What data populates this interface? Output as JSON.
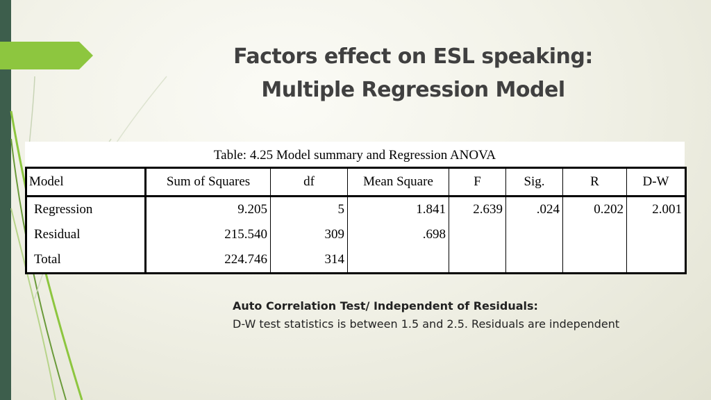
{
  "title": {
    "line1": "Factors effect on ESL speaking:",
    "line2": "Multiple Regression Model"
  },
  "table": {
    "caption": "Table: 4.25 Model summary and Regression ANOVA",
    "headers": [
      "Model",
      "Sum of Squares",
      "df",
      "Mean Square",
      "F",
      "Sig.",
      "R",
      "D-W"
    ],
    "rows": [
      [
        "Regression",
        "9.205",
        "5",
        "1.841",
        "2.639",
        ".024",
        "0.202",
        "2.001"
      ],
      [
        "Residual",
        "215.540",
        "309",
        ".698",
        "",
        "",
        "",
        ""
      ],
      [
        "Total",
        "224.746",
        "314",
        "",
        "",
        "",
        "",
        ""
      ]
    ]
  },
  "note": {
    "heading": "Auto Correlation Test/ Independent of Residuals:",
    "text": "D-W test statistics is between 1.5 and 2.5. Residuals are independent"
  },
  "colors": {
    "accent_green": "#8dc63f",
    "side_bar": "#3d5e4c"
  }
}
